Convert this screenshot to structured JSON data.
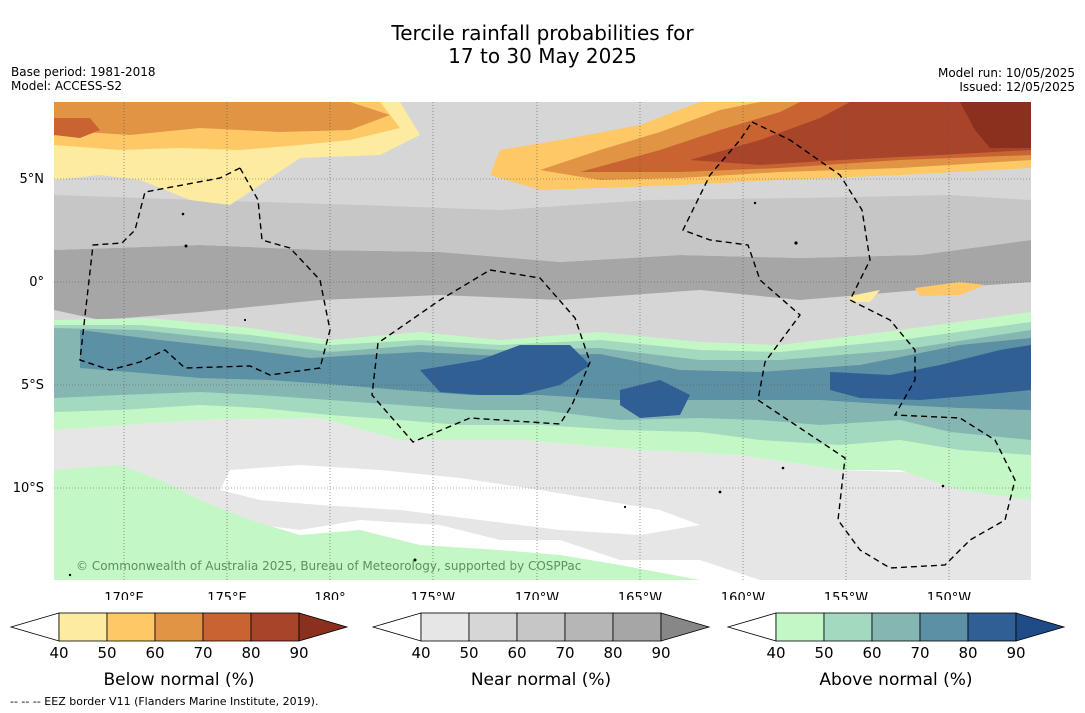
{
  "title": {
    "line1": "Tercile rainfall probabilities for",
    "line2": "17 to 30 May 2025"
  },
  "meta": {
    "base_period": "Base period: 1981-2018",
    "model": "Model: ACCESS-S2",
    "model_run": "Model run: 10/05/2025",
    "issued": "Issued: 12/05/2025"
  },
  "map": {
    "lat_labels": [
      "5°N",
      "0°",
      "5°S",
      "10°S"
    ],
    "lon_labels": [
      "170°E",
      "175°E",
      "180°",
      "175°W",
      "170°W",
      "165°W",
      "160°W",
      "155°W",
      "150°W"
    ],
    "copyright": "© Commonwealth of Australia 2025, Bureau of Meteorology, supported by COSPPac"
  },
  "legends": [
    {
      "title": "Below normal (%)",
      "ticks": [
        "40",
        "50",
        "60",
        "70",
        "80",
        "90"
      ],
      "colors": [
        "#ffffff",
        "#fdeba0",
        "#fdc865",
        "#e09444",
        "#c96432",
        "#a8442a",
        "#8b2f1f"
      ]
    },
    {
      "title": "Near normal (%)",
      "ticks": [
        "40",
        "50",
        "60",
        "70",
        "80",
        "90"
      ],
      "colors": [
        "#ffffff",
        "#e6e6e6",
        "#d6d6d6",
        "#c6c6c6",
        "#b6b6b6",
        "#a6a6a6",
        "#878787"
      ]
    },
    {
      "title": "Above normal (%)",
      "ticks": [
        "40",
        "50",
        "60",
        "70",
        "80",
        "90"
      ],
      "colors": [
        "#ffffff",
        "#c4f7c6",
        "#a3d9bf",
        "#86b6b1",
        "#5b90a5",
        "#2f5f95",
        "#1f4c86"
      ]
    }
  ],
  "footnote": "--  --  -- EEZ border V11 (Flanders Marine Institute, 2019)."
}
